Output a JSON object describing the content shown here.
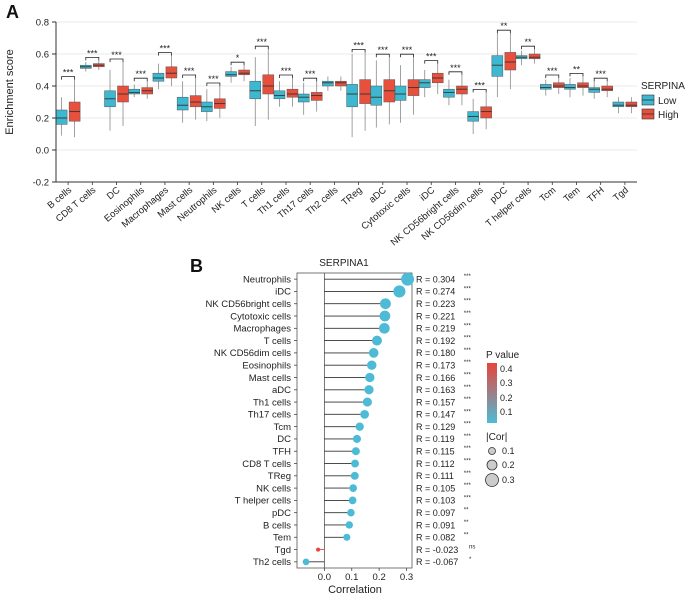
{
  "panels": {
    "a": "A",
    "b": "B"
  },
  "chart_data": [
    {
      "type": "box",
      "panel": "A",
      "ylabel": "Enrichment score",
      "ylim": [
        -0.2,
        0.8
      ],
      "yticks": [
        "-0.2",
        "0.0",
        "0.2",
        "0.4",
        "0.6",
        "0.8"
      ],
      "legend": {
        "title": "SERPINA1",
        "position": "right",
        "entries": [
          "Low",
          "High"
        ]
      },
      "colors": {
        "Low": "#3db8d0",
        "High": "#e8503e"
      },
      "categories": [
        "B cells",
        "CD8 T cells",
        "DC",
        "Eosinophils",
        "Macrophages",
        "Mast cells",
        "Neutrophils",
        "NK cells",
        "T cells",
        "Th1 cells",
        "Th17 cells",
        "Th2 cells",
        "TReg",
        "aDC",
        "Cytotoxic cells",
        "iDC",
        "NK CD56bright cells",
        "NK CD56dim cells",
        "pDC",
        "T helper cells",
        "Tcm",
        "Tem",
        "TFH",
        "Tgd"
      ],
      "significance": [
        "***",
        "***",
        "***",
        "***",
        "***",
        "***",
        "***",
        "*",
        "***",
        "***",
        "***",
        "",
        "***",
        "***",
        "***",
        "***",
        "***",
        "***",
        "**",
        "**",
        "***",
        "**",
        "***",
        ""
      ],
      "series": [
        {
          "name": "Low",
          "boxes": [
            [
              0.09,
              0.16,
              0.2,
              0.25,
              0.33
            ],
            [
              0.49,
              0.51,
              0.52,
              0.53,
              0.55
            ],
            [
              0.12,
              0.27,
              0.32,
              0.37,
              0.5
            ],
            [
              0.33,
              0.35,
              0.36,
              0.38,
              0.41
            ],
            [
              0.38,
              0.43,
              0.45,
              0.48,
              0.54
            ],
            [
              0.17,
              0.25,
              0.28,
              0.33,
              0.43
            ],
            [
              0.18,
              0.24,
              0.27,
              0.3,
              0.38
            ],
            [
              0.42,
              0.46,
              0.47,
              0.49,
              0.52
            ],
            [
              0.15,
              0.32,
              0.37,
              0.43,
              0.58
            ],
            [
              0.27,
              0.32,
              0.34,
              0.37,
              0.43
            ],
            [
              0.22,
              0.3,
              0.33,
              0.35,
              0.42
            ],
            [
              0.37,
              0.4,
              0.42,
              0.43,
              0.46
            ],
            [
              0.08,
              0.27,
              0.35,
              0.41,
              0.6
            ],
            [
              0.14,
              0.28,
              0.33,
              0.4,
              0.56
            ],
            [
              0.17,
              0.31,
              0.35,
              0.4,
              0.53
            ],
            [
              0.33,
              0.39,
              0.42,
              0.44,
              0.5
            ],
            [
              0.28,
              0.33,
              0.36,
              0.38,
              0.44
            ],
            [
              0.1,
              0.18,
              0.21,
              0.24,
              0.32
            ],
            [
              0.33,
              0.46,
              0.53,
              0.59,
              0.73
            ],
            [
              0.53,
              0.57,
              0.58,
              0.59,
              0.62
            ],
            [
              0.34,
              0.38,
              0.39,
              0.41,
              0.44
            ],
            [
              0.33,
              0.38,
              0.39,
              0.41,
              0.45
            ],
            [
              0.32,
              0.36,
              0.38,
              0.39,
              0.43
            ],
            [
              0.23,
              0.27,
              0.28,
              0.3,
              0.33
            ]
          ]
        },
        {
          "name": "High",
          "boxes": [
            [
              0.08,
              0.18,
              0.24,
              0.3,
              0.44
            ],
            [
              0.5,
              0.52,
              0.53,
              0.54,
              0.56
            ],
            [
              0.15,
              0.3,
              0.35,
              0.4,
              0.55
            ],
            [
              0.32,
              0.35,
              0.37,
              0.39,
              0.43
            ],
            [
              0.4,
              0.45,
              0.48,
              0.52,
              0.59
            ],
            [
              0.19,
              0.27,
              0.3,
              0.34,
              0.45
            ],
            [
              0.2,
              0.26,
              0.29,
              0.32,
              0.4
            ],
            [
              0.43,
              0.47,
              0.48,
              0.5,
              0.53
            ],
            [
              0.19,
              0.35,
              0.4,
              0.47,
              0.63
            ],
            [
              0.27,
              0.33,
              0.35,
              0.38,
              0.45
            ],
            [
              0.24,
              0.31,
              0.34,
              0.36,
              0.43
            ],
            [
              0.37,
              0.4,
              0.42,
              0.43,
              0.46
            ],
            [
              0.12,
              0.29,
              0.35,
              0.44,
              0.61
            ],
            [
              0.16,
              0.3,
              0.37,
              0.44,
              0.58
            ],
            [
              0.22,
              0.34,
              0.39,
              0.44,
              0.58
            ],
            [
              0.35,
              0.42,
              0.45,
              0.48,
              0.54
            ],
            [
              0.28,
              0.35,
              0.38,
              0.4,
              0.47
            ],
            [
              0.13,
              0.2,
              0.24,
              0.27,
              0.36
            ],
            [
              0.38,
              0.5,
              0.55,
              0.61,
              0.73
            ],
            [
              0.54,
              0.57,
              0.58,
              0.6,
              0.63
            ],
            [
              0.35,
              0.39,
              0.4,
              0.42,
              0.45
            ],
            [
              0.34,
              0.39,
              0.4,
              0.42,
              0.46
            ],
            [
              0.33,
              0.37,
              0.38,
              0.4,
              0.43
            ],
            [
              0.23,
              0.27,
              0.28,
              0.3,
              0.33
            ]
          ]
        }
      ]
    },
    {
      "type": "lollipop",
      "panel": "B",
      "title": "SERPINA1",
      "xlabel": "Correlation",
      "xlim": [
        -0.1,
        0.32
      ],
      "xticks": [
        "0.0",
        "0.1",
        "0.2",
        "0.3"
      ],
      "legend_p": {
        "title": "P value",
        "ticks": [
          "0.4",
          "0.3",
          "0.2",
          "0.1"
        ]
      },
      "legend_cor": {
        "title": "|Cor|",
        "ticks": [
          "0.1",
          "0.2",
          "0.3"
        ]
      },
      "rows": [
        {
          "label": "Neutrophils",
          "r": 0.304,
          "r_text": "R = 0.304",
          "sig": "***"
        },
        {
          "label": "iDC",
          "r": 0.274,
          "r_text": "R = 0.274",
          "sig": "***"
        },
        {
          "label": "NK CD56bright cells",
          "r": 0.223,
          "r_text": "R = 0.223",
          "sig": "***"
        },
        {
          "label": "Cytotoxic cells",
          "r": 0.221,
          "r_text": "R = 0.221",
          "sig": "***"
        },
        {
          "label": "Macrophages",
          "r": 0.219,
          "r_text": "R = 0.219",
          "sig": "***"
        },
        {
          "label": "T cells",
          "r": 0.192,
          "r_text": "R = 0.192",
          "sig": "***"
        },
        {
          "label": "NK CD56dim cells",
          "r": 0.18,
          "r_text": "R = 0.180",
          "sig": "***"
        },
        {
          "label": "Eosinophils",
          "r": 0.173,
          "r_text": "R = 0.173",
          "sig": "***"
        },
        {
          "label": "Mast cells",
          "r": 0.166,
          "r_text": "R = 0.166",
          "sig": "***"
        },
        {
          "label": "aDC",
          "r": 0.163,
          "r_text": "R = 0.163",
          "sig": "***"
        },
        {
          "label": "Th1 cells",
          "r": 0.157,
          "r_text": "R = 0.157",
          "sig": "***"
        },
        {
          "label": "Th17 cells",
          "r": 0.147,
          "r_text": "R = 0.147",
          "sig": "***"
        },
        {
          "label": "Tcm",
          "r": 0.129,
          "r_text": "R = 0.129",
          "sig": "***"
        },
        {
          "label": "DC",
          "r": 0.119,
          "r_text": "R = 0.119",
          "sig": "***"
        },
        {
          "label": "TFH",
          "r": 0.115,
          "r_text": "R = 0.115",
          "sig": "***"
        },
        {
          "label": "CD8 T cells",
          "r": 0.112,
          "r_text": "R = 0.112",
          "sig": "***"
        },
        {
          "label": "TReg",
          "r": 0.111,
          "r_text": "R = 0.111",
          "sig": "***"
        },
        {
          "label": "NK cells",
          "r": 0.105,
          "r_text": "R = 0.105",
          "sig": "***"
        },
        {
          "label": "T helper cells",
          "r": 0.103,
          "r_text": "R = 0.103",
          "sig": "***"
        },
        {
          "label": "pDC",
          "r": 0.097,
          "r_text": "R = 0.097",
          "sig": "**"
        },
        {
          "label": "B cells",
          "r": 0.091,
          "r_text": "R = 0.091",
          "sig": "**"
        },
        {
          "label": "Tem",
          "r": 0.082,
          "r_text": "R = 0.082",
          "sig": "**"
        },
        {
          "label": "Tgd",
          "r": -0.023,
          "r_text": "R = -0.023",
          "sig": "ns"
        },
        {
          "label": "Th2 cells",
          "r": -0.067,
          "r_text": "R = -0.067",
          "sig": "*"
        }
      ]
    }
  ]
}
